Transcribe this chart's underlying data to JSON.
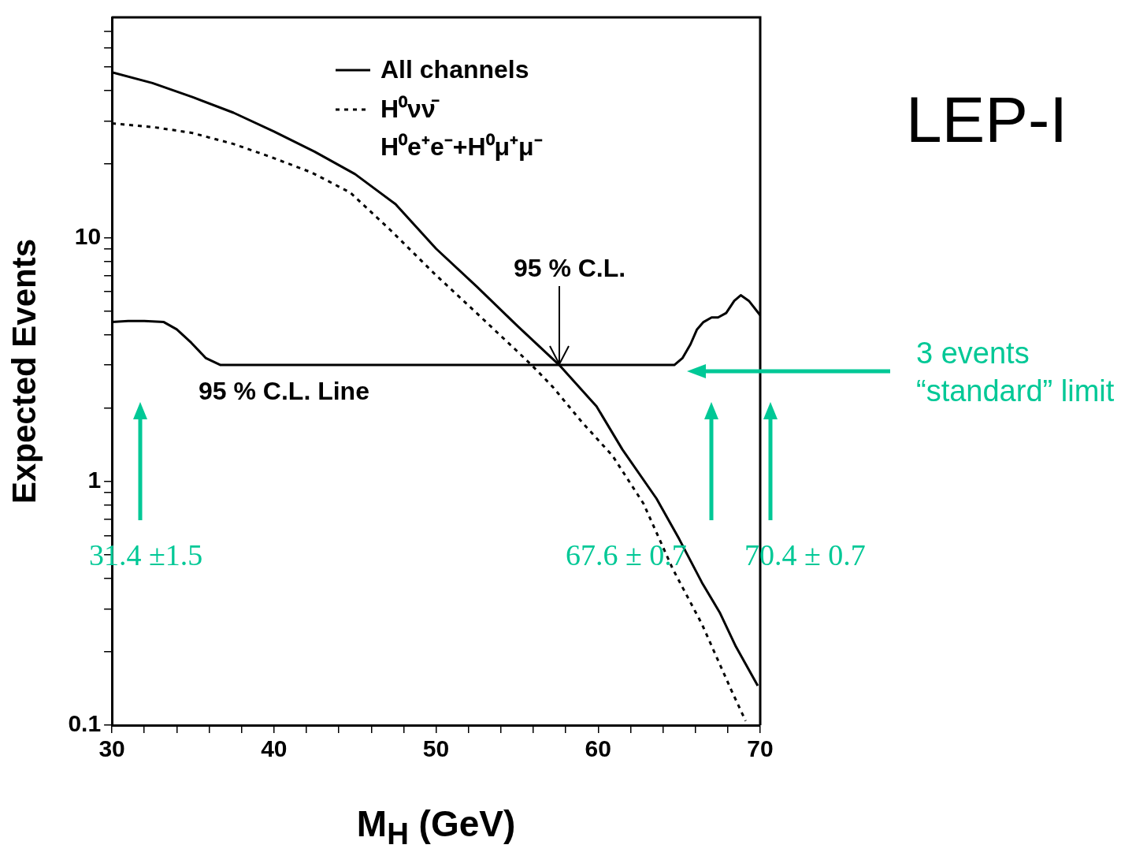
{
  "chart_data": {
    "type": "line",
    "title": "LEP-I",
    "xlabel": "M$_{H}$ (GeV)",
    "ylabel": "Expected Events",
    "log": true,
    "xlim": [
      30,
      70
    ],
    "ylim": [
      0.1,
      80
    ],
    "xticks": [
      30,
      {
        "value": 32,
        "label": null
      },
      {
        "value": 34,
        "label": null
      },
      {
        "value": 36,
        "label": null
      },
      {
        "value": 38,
        "label": null
      },
      40,
      {
        "value": 42,
        "label": null
      },
      {
        "value": 44,
        "label": null
      },
      {
        "value": 46,
        "label": null
      },
      {
        "value": 48,
        "label": null
      },
      50,
      {
        "value": 52,
        "label": null
      },
      {
        "value": 54,
        "label": null
      },
      {
        "value": 56,
        "label": null
      },
      {
        "value": 58,
        "label": null
      },
      60,
      {
        "value": 62,
        "label": null
      },
      {
        "value": 64,
        "label": null
      },
      {
        "value": 66,
        "label": null
      },
      {
        "value": 68,
        "label": null
      },
      70
    ],
    "yticks": [
      0.1,
      {
        "value": 0.2,
        "label": null
      },
      {
        "value": 0.3,
        "label": null
      },
      {
        "value": 0.4,
        "label": null
      },
      {
        "value": 0.5,
        "label": null
      },
      {
        "value": 0.6,
        "label": null
      },
      {
        "value": 0.7,
        "label": null
      },
      {
        "value": 0.8,
        "label": null
      },
      {
        "value": 0.9,
        "label": null
      },
      1,
      {
        "value": 2,
        "label": null
      },
      {
        "value": 3,
        "label": null
      },
      {
        "value": 4,
        "label": null
      },
      {
        "value": 5,
        "label": null
      },
      {
        "value": 6,
        "label": null
      },
      {
        "value": 7,
        "label": null
      },
      {
        "value": 8,
        "label": null
      },
      {
        "value": 9,
        "label": null
      },
      10,
      {
        "value": 20,
        "label": null
      },
      {
        "value": 30,
        "label": null
      },
      {
        "value": 40,
        "label": null
      },
      {
        "value": 50,
        "label": null
      },
      {
        "value": 60,
        "label": null
      },
      {
        "value": 70,
        "label": null
      }
    ],
    "marker": "none",
    "legend": "top right",
    "series": [
      {
        "name": "All channels",
        "color": "#000000",
        "line_style": "solid",
        "x": [
          30,
          32.5,
          35,
          37.5,
          40,
          42.5,
          45,
          47.5,
          50,
          52.5,
          55,
          57.6,
          59.9,
          61.5,
          63.6,
          65,
          66.4,
          67.5,
          68.5,
          69.85
        ],
        "values": [
          47.6,
          43,
          37.6,
          32.5,
          27.2,
          22.5,
          18.2,
          13.7,
          9.0,
          6.3,
          4.35,
          3.0,
          2.03,
          1.35,
          0.85,
          0.58,
          0.385,
          0.29,
          0.21,
          0.145
        ]
      },
      {
        "name": "H⁰νν̄\nH⁰e⁺e⁻+H⁰μ⁺μ⁻",
        "color": "#000000",
        "line_style": "dotted",
        "x": [
          30,
          32.5,
          34.9,
          37.5,
          39.8,
          42.3,
          44.7,
          47.2,
          50,
          52.5,
          55,
          56,
          57.2,
          59,
          60.9,
          62.8,
          64.6,
          66.4,
          68.2,
          69.1
        ],
        "values": [
          29.4,
          28.4,
          26.9,
          24.2,
          21.4,
          18.5,
          15.3,
          10.7,
          7.0,
          4.9,
          3.42,
          2.95,
          2.44,
          1.75,
          1.27,
          0.81,
          0.438,
          0.26,
          0.14,
          0.104
        ]
      },
      {
        "color": "#000000",
        "line_style": "solid",
        "x": [
          30,
          31,
          32,
          33.2,
          34,
          34.9,
          35.8,
          36.7,
          40,
          50,
          60,
          64.7,
          65.2,
          65.7,
          66.1,
          66.5,
          67.0,
          67.4,
          67.9,
          68.4,
          68.8,
          69.3,
          70
        ],
        "values": [
          4.5,
          4.55,
          4.55,
          4.5,
          4.2,
          3.7,
          3.2,
          3.0,
          3,
          3,
          3,
          3,
          3.2,
          3.65,
          4.2,
          4.5,
          4.7,
          4.7,
          4.9,
          5.5,
          5.8,
          5.5,
          4.8
        ]
      }
    ],
    "annotations": [
      {
        "text": "95 % C.L.",
        "x": 57.6,
        "y": 3
      },
      "95 % C.L. Line",
      "31.4 ±1.5",
      "67.6 ± 0.7",
      "70.4 ± 0.7",
      "3 events “standard” limit"
    ]
  }
}
